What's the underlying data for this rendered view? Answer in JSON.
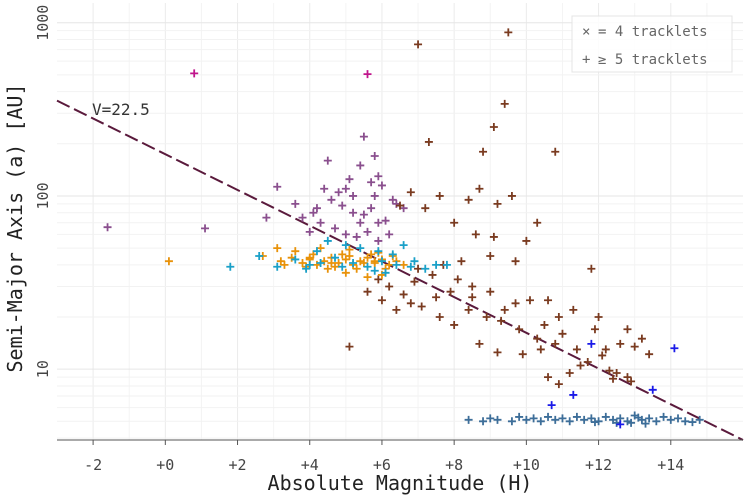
{
  "chart_data": {
    "type": "scatter",
    "title": "",
    "xlabel": "Absolute Magnitude (H)",
    "ylabel": "Semi-Major Axis (a) [AU]",
    "xlim": [
      -3,
      16
    ],
    "ylim": [
      3.9,
      1300
    ],
    "yscale": "log",
    "x_ticks": [
      {
        "value": -2,
        "label": "-2"
      },
      {
        "value": 0,
        "label": "+0"
      },
      {
        "value": 2,
        "label": "+2"
      },
      {
        "value": 4,
        "label": "+4"
      },
      {
        "value": 6,
        "label": "+6"
      },
      {
        "value": 8,
        "label": "+8"
      },
      {
        "value": 10,
        "label": "+10"
      },
      {
        "value": 12,
        "label": "+12"
      },
      {
        "value": 14,
        "label": "+14"
      }
    ],
    "y_ticks": [
      {
        "value": 10,
        "label": "10"
      },
      {
        "value": 100,
        "label": "100"
      },
      {
        "value": 1000,
        "label": "1000"
      }
    ],
    "grid": true,
    "reference_line": {
      "label": "V=22.5",
      "from": [
        -3,
        355
      ],
      "to": [
        16,
        3.9
      ],
      "color": "#5a1a3c"
    },
    "legend": {
      "position": "top-right",
      "entries": [
        {
          "marker": "×",
          "label": "= 4 tracklets"
        },
        {
          "marker": "+",
          "label": "≥ 5 tracklets"
        }
      ]
    },
    "series": [
      {
        "name": "magenta",
        "color": "#c0158c",
        "points": [
          [
            0.8,
            510
          ],
          [
            5.6,
            505
          ]
        ]
      },
      {
        "name": "violet",
        "color": "#8a4f8e",
        "points": [
          [
            -1.6,
            66
          ],
          [
            1.1,
            65
          ],
          [
            3.1,
            113
          ],
          [
            3.6,
            90
          ],
          [
            2.8,
            75
          ],
          [
            4.5,
            160
          ],
          [
            5.0,
            110
          ],
          [
            5.4,
            150
          ],
          [
            5.5,
            220
          ],
          [
            5.8,
            170
          ],
          [
            5.9,
            130
          ],
          [
            6.0,
            115
          ],
          [
            4.2,
            85
          ],
          [
            4.6,
            95
          ],
          [
            4.9,
            88
          ],
          [
            5.2,
            80
          ],
          [
            5.5,
            78
          ],
          [
            5.7,
            85
          ],
          [
            5.9,
            70
          ],
          [
            6.1,
            72
          ],
          [
            4.3,
            70
          ],
          [
            4.7,
            65
          ],
          [
            5.0,
            60
          ],
          [
            5.3,
            58
          ],
          [
            5.6,
            62
          ],
          [
            5.9,
            55
          ],
          [
            6.2,
            60
          ],
          [
            4.8,
            105
          ],
          [
            5.2,
            100
          ],
          [
            5.8,
            100
          ],
          [
            6.4,
            90
          ],
          [
            4.0,
            62
          ],
          [
            3.8,
            75
          ],
          [
            4.4,
            110
          ],
          [
            5.1,
            125
          ],
          [
            5.7,
            120
          ],
          [
            6.3,
            95
          ],
          [
            5.4,
            70
          ],
          [
            4.1,
            80
          ],
          [
            6.6,
            85
          ]
        ]
      },
      {
        "name": "brown",
        "color": "#7a3b20",
        "points": [
          [
            7.0,
            750
          ],
          [
            9.5,
            880
          ],
          [
            9.4,
            340
          ],
          [
            9.1,
            250
          ],
          [
            7.3,
            205
          ],
          [
            8.8,
            180
          ],
          [
            10.8,
            180
          ],
          [
            8.7,
            110
          ],
          [
            9.6,
            100
          ],
          [
            9.2,
            90
          ],
          [
            8.4,
            95
          ],
          [
            7.6,
            100
          ],
          [
            6.8,
            105
          ],
          [
            7.2,
            85
          ],
          [
            6.5,
            88
          ],
          [
            8.0,
            70
          ],
          [
            8.6,
            60
          ],
          [
            9.1,
            58
          ],
          [
            10.0,
            55
          ],
          [
            10.3,
            70
          ],
          [
            9.7,
            42
          ],
          [
            9.0,
            45
          ],
          [
            8.2,
            42
          ],
          [
            7.7,
            40
          ],
          [
            11.8,
            38
          ],
          [
            10.1,
            25
          ],
          [
            10.6,
            25
          ],
          [
            11.3,
            22
          ],
          [
            12.0,
            20
          ],
          [
            12.8,
            17
          ],
          [
            13.2,
            15
          ],
          [
            12.6,
            14
          ],
          [
            12.2,
            13
          ],
          [
            11.4,
            13
          ],
          [
            10.8,
            14
          ],
          [
            10.3,
            15
          ],
          [
            9.8,
            17
          ],
          [
            9.3,
            19
          ],
          [
            8.9,
            20
          ],
          [
            8.4,
            22
          ],
          [
            8.0,
            18
          ],
          [
            7.6,
            20
          ],
          [
            7.1,
            23
          ],
          [
            6.8,
            24
          ],
          [
            6.4,
            22
          ],
          [
            6.0,
            25
          ],
          [
            5.6,
            28
          ],
          [
            6.2,
            30
          ],
          [
            6.9,
            32
          ],
          [
            7.4,
            35
          ],
          [
            8.5,
            30
          ],
          [
            9.0,
            28
          ],
          [
            9.7,
            24
          ],
          [
            10.5,
            18
          ],
          [
            11.0,
            16
          ],
          [
            11.7,
            11
          ],
          [
            12.1,
            12
          ],
          [
            12.5,
            9.5
          ],
          [
            12.8,
            9
          ],
          [
            13.0,
            13.5
          ],
          [
            11.2,
            9.5
          ],
          [
            10.6,
            9
          ],
          [
            10.4,
            13
          ],
          [
            9.9,
            12.2
          ],
          [
            9.2,
            12.5
          ],
          [
            8.7,
            14
          ],
          [
            5.1,
            13.5
          ],
          [
            10.9,
            8.2
          ],
          [
            12.4,
            8.8
          ],
          [
            13.4,
            12.2
          ],
          [
            8.5,
            26
          ],
          [
            7.9,
            28
          ],
          [
            6.6,
            27
          ],
          [
            5.9,
            33
          ],
          [
            7.0,
            38
          ],
          [
            8.1,
            33
          ],
          [
            9.4,
            22
          ],
          [
            10.9,
            20
          ],
          [
            11.9,
            17
          ],
          [
            12.9,
            8.5
          ],
          [
            12.3,
            9.8
          ],
          [
            11.5,
            10.5
          ],
          [
            7.5,
            26
          ]
        ]
      },
      {
        "name": "orange",
        "color": "#e8920a",
        "points": [
          [
            0.1,
            42
          ],
          [
            2.7,
            45
          ],
          [
            3.2,
            42
          ],
          [
            3.5,
            44
          ],
          [
            3.8,
            41
          ],
          [
            4.0,
            43
          ],
          [
            4.2,
            40
          ],
          [
            4.4,
            42
          ],
          [
            4.6,
            44
          ],
          [
            4.8,
            41
          ],
          [
            5.0,
            43
          ],
          [
            5.2,
            40
          ],
          [
            5.4,
            42
          ],
          [
            5.6,
            44
          ],
          [
            5.8,
            41
          ],
          [
            6.0,
            43
          ],
          [
            6.2,
            40
          ],
          [
            6.4,
            42
          ],
          [
            4.1,
            46
          ],
          [
            4.5,
            38
          ],
          [
            4.9,
            46
          ],
          [
            5.3,
            38
          ],
          [
            5.7,
            46
          ],
          [
            6.1,
            38
          ],
          [
            3.6,
            48
          ],
          [
            4.3,
            50
          ],
          [
            5.1,
            49
          ],
          [
            5.9,
            47
          ],
          [
            3.3,
            40
          ],
          [
            4.7,
            39
          ],
          [
            5.5,
            41
          ],
          [
            6.3,
            45
          ],
          [
            4.0,
            44
          ],
          [
            4.6,
            41
          ],
          [
            5.1,
            45
          ],
          [
            5.8,
            42
          ],
          [
            3.9,
            39
          ],
          [
            6.6,
            40
          ],
          [
            3.1,
            50
          ],
          [
            5.0,
            36
          ],
          [
            5.6,
            34
          ],
          [
            6.0,
            35
          ]
        ]
      },
      {
        "name": "cyan",
        "color": "#1aa0c8",
        "points": [
          [
            1.8,
            39
          ],
          [
            2.6,
            45
          ],
          [
            3.1,
            39
          ],
          [
            3.9,
            38
          ],
          [
            4.3,
            41
          ],
          [
            4.7,
            44
          ],
          [
            5.2,
            41
          ],
          [
            5.6,
            39
          ],
          [
            6.0,
            42
          ],
          [
            6.4,
            40
          ],
          [
            6.8,
            39
          ],
          [
            7.2,
            38
          ],
          [
            7.5,
            40
          ],
          [
            4.5,
            55
          ],
          [
            5.0,
            52
          ],
          [
            5.4,
            50
          ],
          [
            5.9,
            48
          ],
          [
            6.3,
            46
          ],
          [
            6.6,
            52
          ],
          [
            4.2,
            48
          ],
          [
            4.0,
            40
          ],
          [
            3.6,
            43
          ],
          [
            5.8,
            37
          ],
          [
            6.1,
            36
          ],
          [
            4.9,
            39
          ],
          [
            7.8,
            40
          ],
          [
            6.9,
            42
          ]
        ]
      },
      {
        "name": "steelblue",
        "color": "#3d6e99",
        "points": [
          [
            8.4,
            5.1
          ],
          [
            8.8,
            5.0
          ],
          [
            9.2,
            5.1
          ],
          [
            9.6,
            5.0
          ],
          [
            10.0,
            5.1
          ],
          [
            10.4,
            5.0
          ],
          [
            10.8,
            5.1
          ],
          [
            11.2,
            5.0
          ],
          [
            11.6,
            5.1
          ],
          [
            12.0,
            5.0
          ],
          [
            12.4,
            5.1
          ],
          [
            12.8,
            5.0
          ],
          [
            13.2,
            5.1
          ],
          [
            13.6,
            5.0
          ],
          [
            14.0,
            5.1
          ],
          [
            14.4,
            5.0
          ],
          [
            14.8,
            5.1
          ],
          [
            9.0,
            5.2
          ],
          [
            10.2,
            5.2
          ],
          [
            11.0,
            5.2
          ],
          [
            11.8,
            5.2
          ],
          [
            12.6,
            5.2
          ],
          [
            13.4,
            5.2
          ],
          [
            14.2,
            5.2
          ],
          [
            12.2,
            5.3
          ],
          [
            13.0,
            5.4
          ],
          [
            13.8,
            5.3
          ],
          [
            11.4,
            5.3
          ],
          [
            10.6,
            5.3
          ],
          [
            9.8,
            5.3
          ],
          [
            12.9,
            4.9
          ],
          [
            13.3,
            4.85
          ],
          [
            12.5,
            4.9
          ],
          [
            14.6,
            4.95
          ],
          [
            11.9,
            4.95
          ],
          [
            13.1,
            5.25
          ]
        ]
      },
      {
        "name": "blue",
        "color": "#1a1ae8",
        "points": [
          [
            11.8,
            14
          ],
          [
            14.1,
            13.2
          ],
          [
            11.3,
            7.1
          ],
          [
            10.7,
            6.2
          ],
          [
            13.5,
            7.6
          ],
          [
            12.6,
            4.8
          ]
        ]
      }
    ]
  }
}
